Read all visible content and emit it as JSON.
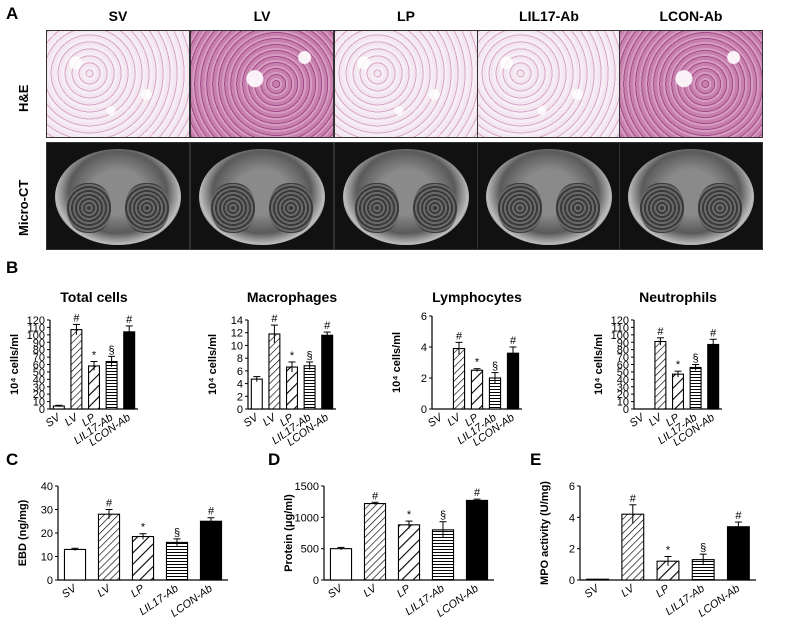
{
  "panels": {
    "A": "A",
    "B": "B",
    "C": "C",
    "D": "D",
    "E": "E"
  },
  "groups": [
    "SV",
    "LV",
    "LP",
    "LIL17-Ab",
    "LCON-Ab"
  ],
  "row_labels": {
    "he": "H&E",
    "ct": "Micro-CT"
  },
  "colors": {
    "sv": "#ffffff",
    "lcon": "#000000",
    "stroke": "#000000"
  },
  "chart_data": [
    {
      "id": "total",
      "type": "bar",
      "title": "Total cells",
      "ylabel": "10⁴ cells/ml",
      "categories": [
        "SV",
        "LV",
        "LP",
        "LIL17-Ab",
        "LCON-Ab"
      ],
      "values": [
        4,
        107,
        58,
        64,
        104
      ],
      "errors": [
        1,
        7,
        6,
        7,
        8
      ],
      "marks": [
        "",
        "#",
        "*",
        "§",
        "#"
      ],
      "yticks": [
        0,
        10,
        20,
        30,
        40,
        50,
        60,
        70,
        80,
        90,
        100,
        110,
        120
      ],
      "ylim": [
        0,
        120
      ]
    },
    {
      "id": "mac",
      "type": "bar",
      "title": "Macrophages",
      "ylabel": "10⁴ cells/ml",
      "categories": [
        "SV",
        "LV",
        "LP",
        "LIL17-Ab",
        "LCON-Ab"
      ],
      "values": [
        4.7,
        11.8,
        6.6,
        6.8,
        11.6
      ],
      "errors": [
        0.4,
        1.4,
        0.8,
        0.6,
        0.5
      ],
      "marks": [
        "",
        "#",
        "*",
        "§",
        "#"
      ],
      "yticks": [
        0,
        2,
        4,
        6,
        8,
        10,
        12,
        14
      ],
      "ylim": [
        0,
        14
      ]
    },
    {
      "id": "lym",
      "type": "bar",
      "title": "Lymphocytes",
      "ylabel": "10⁴ cells/ml",
      "categories": [
        "SV",
        "LV",
        "LP",
        "LIL17-Ab",
        "LCON-Ab"
      ],
      "values": [
        0,
        3.9,
        2.5,
        2.0,
        3.6
      ],
      "errors": [
        0,
        0.4,
        0.1,
        0.35,
        0.4
      ],
      "marks": [
        "",
        "#",
        "*",
        "§",
        "#"
      ],
      "yticks": [
        0,
        2,
        4,
        6
      ],
      "ylim": [
        0,
        6
      ]
    },
    {
      "id": "neu",
      "type": "bar",
      "title": "Neutrophils",
      "ylabel": "10⁴ cells/ml",
      "categories": [
        "SV",
        "LV",
        "LP",
        "LIL17-Ab",
        "LCON-Ab"
      ],
      "values": [
        0,
        91,
        47,
        56,
        87
      ],
      "errors": [
        0,
        5,
        4,
        4,
        7
      ],
      "marks": [
        "",
        "#",
        "*",
        "§",
        "#"
      ],
      "yticks": [
        0,
        10,
        20,
        30,
        40,
        50,
        60,
        70,
        80,
        90,
        100,
        110,
        120
      ],
      "ylim": [
        0,
        120
      ]
    },
    {
      "id": "ebd",
      "type": "bar",
      "title": "",
      "ylabel": "EBD (ng/mg)",
      "categories": [
        "SV",
        "LV",
        "LP",
        "LIL17-Ab",
        "LCON-Ab"
      ],
      "values": [
        13,
        28,
        18.5,
        16,
        25
      ],
      "errors": [
        0.5,
        2,
        1.2,
        1.5,
        1.5
      ],
      "marks": [
        "",
        "#",
        "*",
        "§",
        "#"
      ],
      "yticks": [
        0,
        10,
        20,
        30,
        40
      ],
      "ylim": [
        0,
        40
      ]
    },
    {
      "id": "protein",
      "type": "bar",
      "title": "",
      "ylabel": "Protein (μg/ml)",
      "categories": [
        "SV",
        "LV",
        "LP",
        "LIL17-Ab",
        "LCON-Ab"
      ],
      "values": [
        500,
        1220,
        880,
        800,
        1270
      ],
      "errors": [
        20,
        20,
        60,
        130,
        20
      ],
      "marks": [
        "",
        "#",
        "*",
        "§",
        "#"
      ],
      "yticks": [
        0,
        500,
        1000,
        1500
      ],
      "ylim": [
        0,
        1500
      ]
    },
    {
      "id": "mpo",
      "type": "bar",
      "title": "",
      "ylabel": "MPO activity (U/mg)",
      "categories": [
        "SV",
        "LV",
        "LP",
        "LIL17-Ab",
        "LCON-Ab"
      ],
      "values": [
        0.05,
        4.2,
        1.2,
        1.3,
        3.4
      ],
      "errors": [
        0,
        0.6,
        0.3,
        0.35,
        0.3
      ],
      "marks": [
        "",
        "#",
        "*",
        "§",
        "#"
      ],
      "yticks": [
        0,
        2,
        4,
        6
      ],
      "ylim": [
        0,
        6
      ]
    }
  ]
}
